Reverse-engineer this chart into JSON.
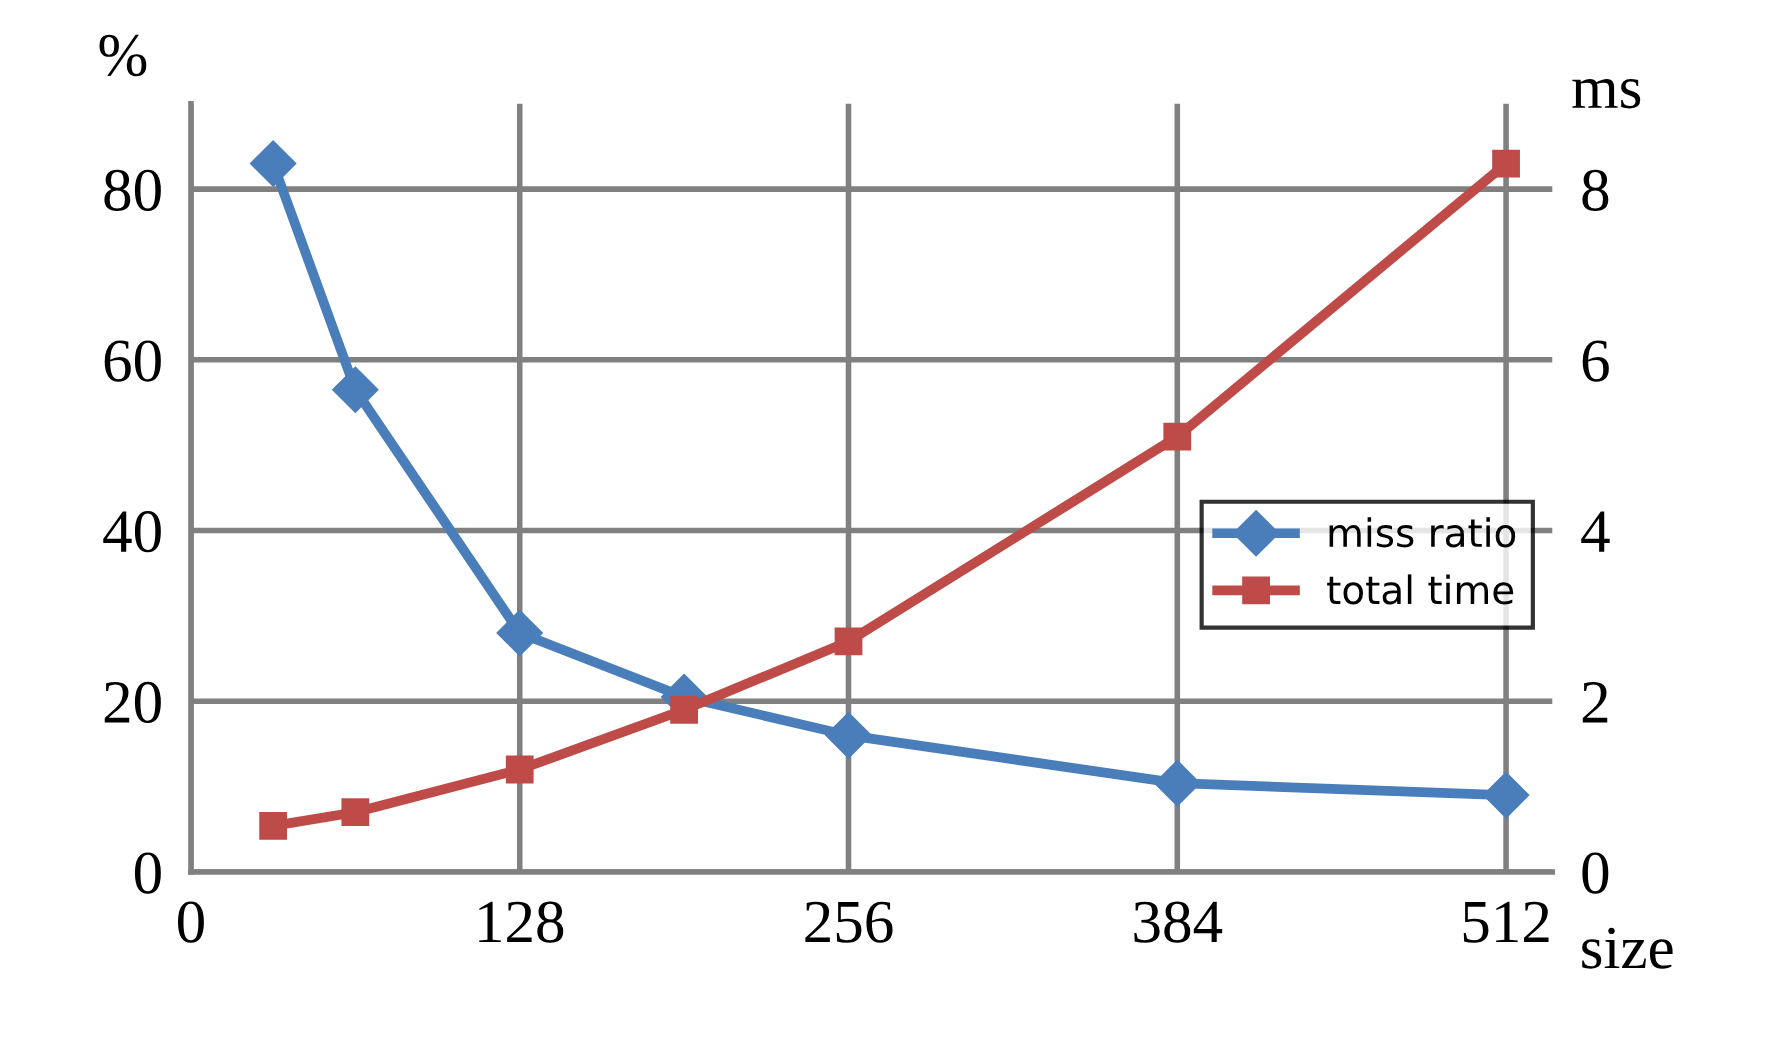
{
  "chart_data": {
    "type": "line",
    "ylabel": "%",
    "y2label": "ms",
    "xlabel": "size",
    "xlim": [
      0,
      530
    ],
    "xticks": [
      0,
      128,
      256,
      384,
      512
    ],
    "ylim": [
      0,
      90
    ],
    "yticks": [
      0,
      20,
      40,
      60,
      80
    ],
    "y2lim": [
      0,
      9
    ],
    "y2ticks": [
      0,
      2,
      4,
      6,
      8
    ],
    "grid": true,
    "legend": "right",
    "series": [
      {
        "name": "miss ratio",
        "color": "#4a7ebb",
        "marker": "diamond",
        "x": [
          32,
          64,
          128,
          192,
          256,
          384,
          512
        ],
        "values": [
          83,
          56.5,
          28,
          20.5,
          16,
          10.4,
          9
        ]
      },
      {
        "name": "total time",
        "color": "#be4b48",
        "marker": "square",
        "axis": "y2",
        "x": [
          32,
          64,
          128,
          192,
          256,
          384,
          512
        ],
        "values": [
          0.54,
          0.7,
          1.2,
          1.9,
          2.7,
          5.1,
          8.3
        ]
      }
    ]
  }
}
